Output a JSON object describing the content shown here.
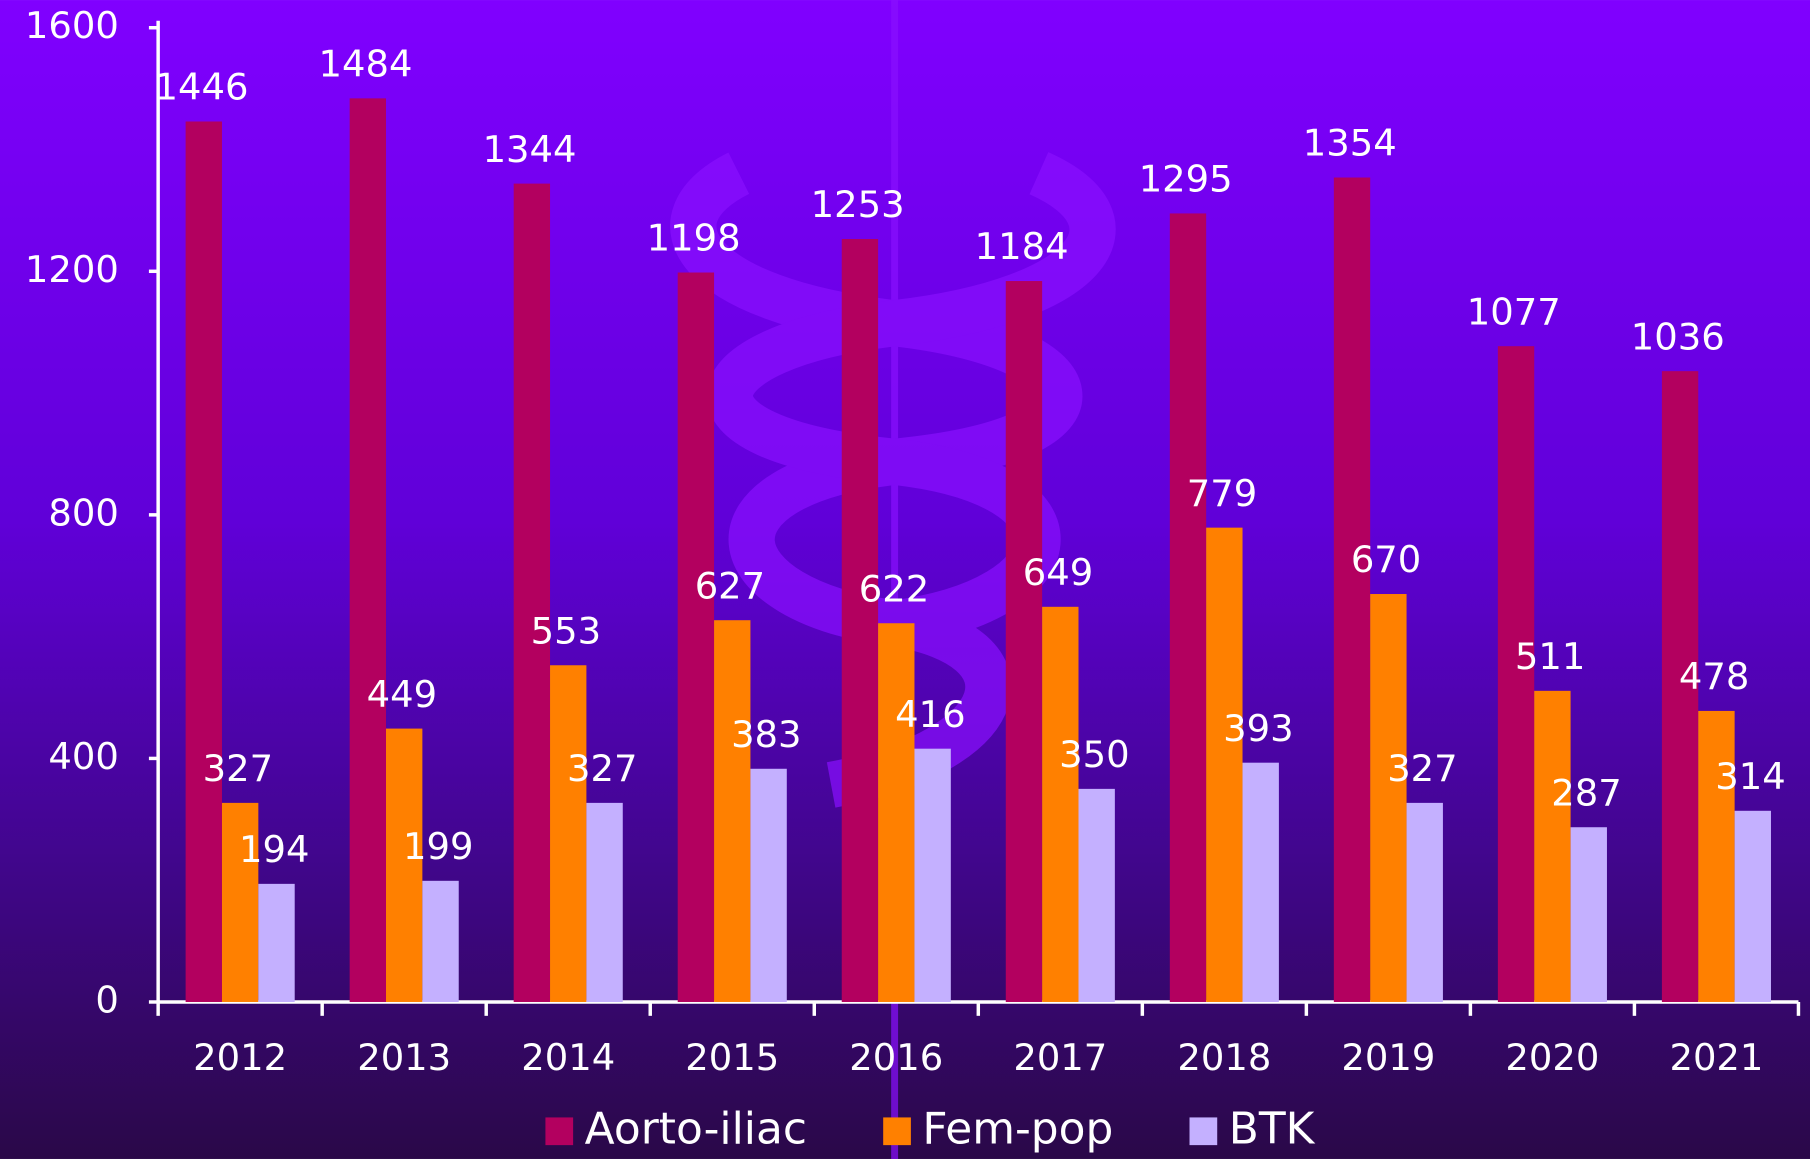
{
  "chart_data": {
    "type": "bar",
    "categories": [
      "2012",
      "2013",
      "2014",
      "2015",
      "2016",
      "2017",
      "2018",
      "2019",
      "2020",
      "2021"
    ],
    "series": [
      {
        "name": "Aorto-iliac",
        "color": "#b3005f",
        "values": [
          1446,
          1484,
          1344,
          1198,
          1253,
          1184,
          1295,
          1354,
          1077,
          1036
        ]
      },
      {
        "name": "Fem-pop",
        "color": "#ff8000",
        "values": [
          327,
          449,
          553,
          627,
          622,
          649,
          779,
          670,
          511,
          478
        ]
      },
      {
        "name": "BTK",
        "color": "#c4b0ff",
        "values": [
          194,
          199,
          327,
          383,
          416,
          350,
          393,
          327,
          287,
          314
        ]
      }
    ],
    "ylim": [
      0,
      1600
    ],
    "yticks": [
      0,
      400,
      800,
      1200,
      1600
    ],
    "grid": false,
    "legend": "bottom"
  }
}
